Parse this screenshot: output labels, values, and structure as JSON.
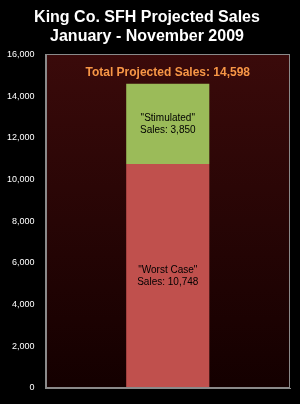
{
  "chart_data": {
    "type": "bar",
    "title": "King Co. SFH Projected Sales",
    "subtitle": "January - November 2009",
    "categories": [
      null
    ],
    "series": [
      {
        "name": "\"Worst Case\"",
        "color": "#c0504d",
        "values": [
          10748
        ],
        "value_labels": [
          "Sales: 10,748"
        ]
      },
      {
        "name": "\"Stimulated\"",
        "color": "#9bbb59",
        "values": [
          3850
        ],
        "value_labels": [
          "Sales: 3,850"
        ]
      }
    ],
    "annotations": [
      {
        "text": "Total Projected Sales: 14,598",
        "color": "#f79646"
      }
    ],
    "ylim": [
      0,
      16000
    ],
    "yticks": [
      0,
      {
        "value": 2000,
        "label": "2,000"
      },
      {
        "value": 4000,
        "label": "4,000"
      },
      {
        "value": 6000,
        "label": "6,000"
      },
      {
        "value": 8000,
        "label": "8,000"
      },
      {
        "value": 10000,
        "label": "10,000"
      },
      {
        "value": 12000,
        "label": "12,000"
      },
      {
        "value": 14000,
        "label": "14,000"
      },
      {
        "value": 16000,
        "label": "16,000"
      }
    ],
    "stacked": true,
    "data_labels": true,
    "tick_labels": "y",
    "grid": false
  }
}
